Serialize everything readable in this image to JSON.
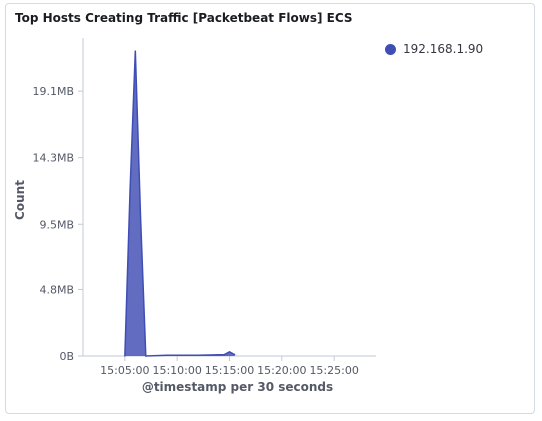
{
  "panel": {
    "title": "Top Hosts Creating Traffic [Packetbeat Flows] ECS"
  },
  "legend": {
    "items": [
      {
        "label": "192.168.1.90",
        "color": "#3f4db5"
      }
    ]
  },
  "chart_data": {
    "type": "area",
    "title": "Top Hosts Creating Traffic [Packetbeat Flows] ECS",
    "xlabel": "@timestamp per 30 seconds",
    "ylabel": "Count",
    "x_tick_labels": [
      "15:05:00",
      "15:10:00",
      "15:15:00",
      "15:20:00",
      "15:25:00"
    ],
    "y_tick_labels": [
      "0B",
      "4.8MB",
      "9.5MB",
      "14.3MB",
      "19.1MB"
    ],
    "y_tick_values_mb": [
      0,
      4.8,
      9.5,
      14.3,
      19.1
    ],
    "xlim_minutes": [
      "15:01:00",
      "15:29:00"
    ],
    "ylim_mb": [
      0,
      22.5
    ],
    "grid": false,
    "legend_position": "top-right",
    "series": [
      {
        "name": "192.168.1.90",
        "color": "#3f4db5",
        "points": [
          {
            "t": "15:05:00",
            "value_mb": 0
          },
          {
            "t": "15:05:30",
            "value_mb": 12.0
          },
          {
            "t": "15:06:00",
            "value_mb": 22.0
          },
          {
            "t": "15:06:30",
            "value_mb": 10.0
          },
          {
            "t": "15:07:00",
            "value_mb": 0
          },
          {
            "t": "15:09:00",
            "value_mb": 0.05
          },
          {
            "t": "15:12:00",
            "value_mb": 0.05
          },
          {
            "t": "15:14:30",
            "value_mb": 0.1
          },
          {
            "t": "15:15:00",
            "value_mb": 0.3
          },
          {
            "t": "15:15:30",
            "value_mb": 0.1
          }
        ]
      }
    ]
  }
}
